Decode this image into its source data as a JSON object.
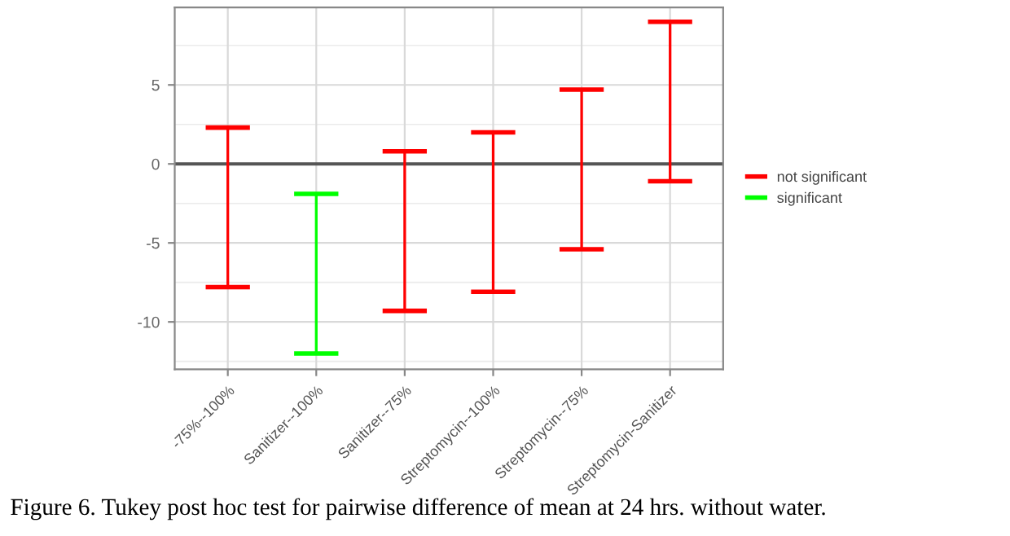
{
  "chart_data": {
    "type": "bar",
    "categories": [
      "-75%--100%",
      "Sanitizer--100%",
      "Sanitizer--75%",
      "Streptomycin--100%",
      "Streptomycin--75%",
      "Streptomycin-Sanitizer"
    ],
    "series": [
      {
        "name": "not significant",
        "color": "#ff0000",
        "base": [
          -7.8,
          null,
          -9.3,
          -8.1,
          -5.4,
          -1.1
        ],
        "values": [
          10.1,
          null,
          10.1,
          10.1,
          10.1,
          10.1
        ]
      },
      {
        "name": "significant",
        "color": "#00ff00",
        "base": [
          null,
          -12.0,
          null,
          null,
          null,
          null
        ],
        "values": [
          null,
          10.1,
          null,
          null,
          null,
          null
        ]
      }
    ],
    "ylim": [
      -13,
      9.9
    ],
    "yticks": [
      -10,
      -5,
      0,
      5
    ],
    "ref_lines": [
      {
        "axis": "y",
        "value": 0,
        "color": "#555555"
      }
    ],
    "grid": true,
    "legend": "right",
    "annotations": [
      "Figure 6. Tukey post hoc test for pairwise difference of mean at 24 hrs. without water."
    ]
  }
}
